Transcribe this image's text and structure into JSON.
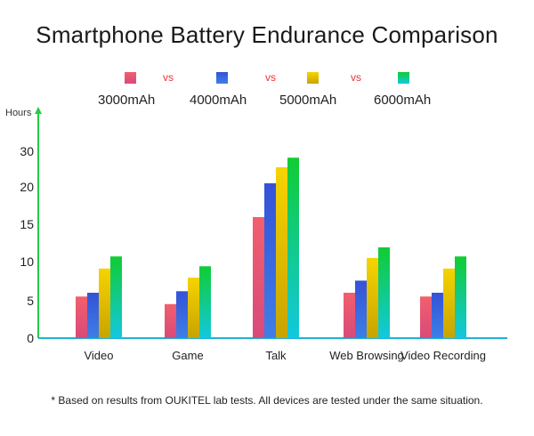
{
  "chart_data": {
    "type": "bar",
    "title": "Smartphone Battery Endurance Comparison",
    "ylabel": "Hours",
    "xlabel": "",
    "categories": [
      "Video",
      "Game",
      "Talk",
      "Web Browsing",
      "Video Recording"
    ],
    "yticks": [
      "0",
      "5",
      "10",
      "15",
      "20",
      "30"
    ],
    "series": [
      {
        "name": "3000mAh",
        "values": [
          5.5,
          4.5,
          16,
          6,
          5.5
        ]
      },
      {
        "name": "4000mAh",
        "values": [
          6,
          6.2,
          21,
          7.6,
          6
        ]
      },
      {
        "name": "5000mAh",
        "values": [
          9.2,
          8,
          25.5,
          10.6,
          9.2
        ]
      },
      {
        "name": "6000mAh",
        "values": [
          10.8,
          9.5,
          28.2,
          12,
          10.8
        ]
      }
    ],
    "colors": [
      {
        "top": "#f25f6e",
        "bottom": "#d84a7a"
      },
      {
        "top": "#3552d8",
        "bottom": "#3d7fe6"
      },
      {
        "top": "#f5d400",
        "bottom": "#c9a300"
      },
      {
        "top": "#11cc33",
        "bottom": "#12c8e0"
      }
    ],
    "axis_color": "#1eb3d6",
    "legend_vs": [
      "vs",
      "vs",
      "vs"
    ],
    "footnote": "* Based on results from OUKITEL lab tests. All devices are tested under the same situation."
  }
}
